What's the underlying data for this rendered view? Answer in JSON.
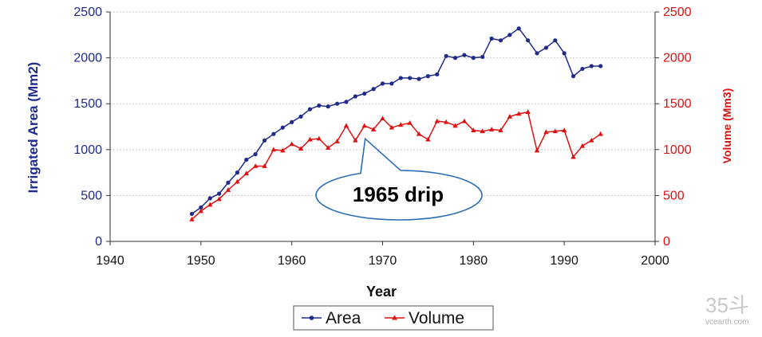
{
  "chart_data": {
    "type": "line",
    "xlabel": "Year",
    "ylabel_left": "Irrigated Area (Mm2)",
    "ylabel_right": "Volume (Mm3)",
    "xlim": [
      1940,
      2000
    ],
    "xticks": [
      "1940",
      "1950",
      "1960",
      "1970",
      "1980",
      "1990",
      "2000"
    ],
    "ylim_left": [
      0,
      2500
    ],
    "ylim_right": [
      0,
      2500
    ],
    "yticks_left": [
      "0",
      "500",
      "1000",
      "1500",
      "2000",
      "2500"
    ],
    "yticks_right": [
      "0",
      "500",
      "1000",
      "1500",
      "2000",
      "2500"
    ],
    "grid": "horizontal",
    "legend_position": "bottom",
    "series": [
      {
        "name": "Area",
        "axis": "left",
        "color": "#1f2a8a",
        "marker": "circle",
        "x": [
          1949,
          1950,
          1951,
          1952,
          1953,
          1954,
          1955,
          1956,
          1957,
          1958,
          1959,
          1960,
          1961,
          1962,
          1963,
          1964,
          1965,
          1966,
          1967,
          1968,
          1969,
          1970,
          1971,
          1972,
          1973,
          1974,
          1975,
          1976,
          1977,
          1978,
          1979,
          1980,
          1981,
          1982,
          1983,
          1984,
          1985,
          1986,
          1987,
          1988,
          1989,
          1990,
          1991,
          1992,
          1993,
          1994
        ],
        "y": [
          300,
          370,
          470,
          520,
          640,
          750,
          890,
          950,
          1100,
          1170,
          1240,
          1300,
          1360,
          1440,
          1480,
          1470,
          1500,
          1520,
          1580,
          1610,
          1660,
          1720,
          1720,
          1780,
          1780,
          1770,
          1800,
          1820,
          2020,
          2000,
          2030,
          2000,
          2010,
          2210,
          2190,
          2250,
          2320,
          2190,
          2050,
          2110,
          2190,
          2050,
          1800,
          1880,
          1910,
          1910
        ]
      },
      {
        "name": "Volume",
        "axis": "right",
        "color": "#e01010",
        "marker": "triangle",
        "x": [
          1949,
          1950,
          1951,
          1952,
          1953,
          1954,
          1955,
          1956,
          1957,
          1958,
          1959,
          1960,
          1961,
          1962,
          1963,
          1964,
          1965,
          1966,
          1967,
          1968,
          1969,
          1970,
          1971,
          1972,
          1973,
          1974,
          1975,
          1976,
          1977,
          1978,
          1979,
          1980,
          1981,
          1982,
          1983,
          1984,
          1985,
          1986,
          1987,
          1988,
          1989,
          1990,
          1991,
          1992,
          1993,
          1994
        ],
        "y": [
          240,
          330,
          400,
          460,
          560,
          650,
          740,
          820,
          820,
          1000,
          990,
          1060,
          1010,
          1110,
          1120,
          1020,
          1090,
          1260,
          1100,
          1260,
          1220,
          1340,
          1240,
          1270,
          1290,
          1170,
          1110,
          1310,
          1300,
          1260,
          1310,
          1210,
          1200,
          1220,
          1210,
          1360,
          1390,
          1410,
          990,
          1190,
          1200,
          1210,
          920,
          1040,
          1100,
          1170
        ]
      }
    ],
    "annotation": {
      "text": "1965 drip",
      "anchor_x": 1968,
      "anchor_y_right": 1170
    }
  },
  "watermark": {
    "text": "35斗",
    "subtext": "vcearth.com"
  }
}
